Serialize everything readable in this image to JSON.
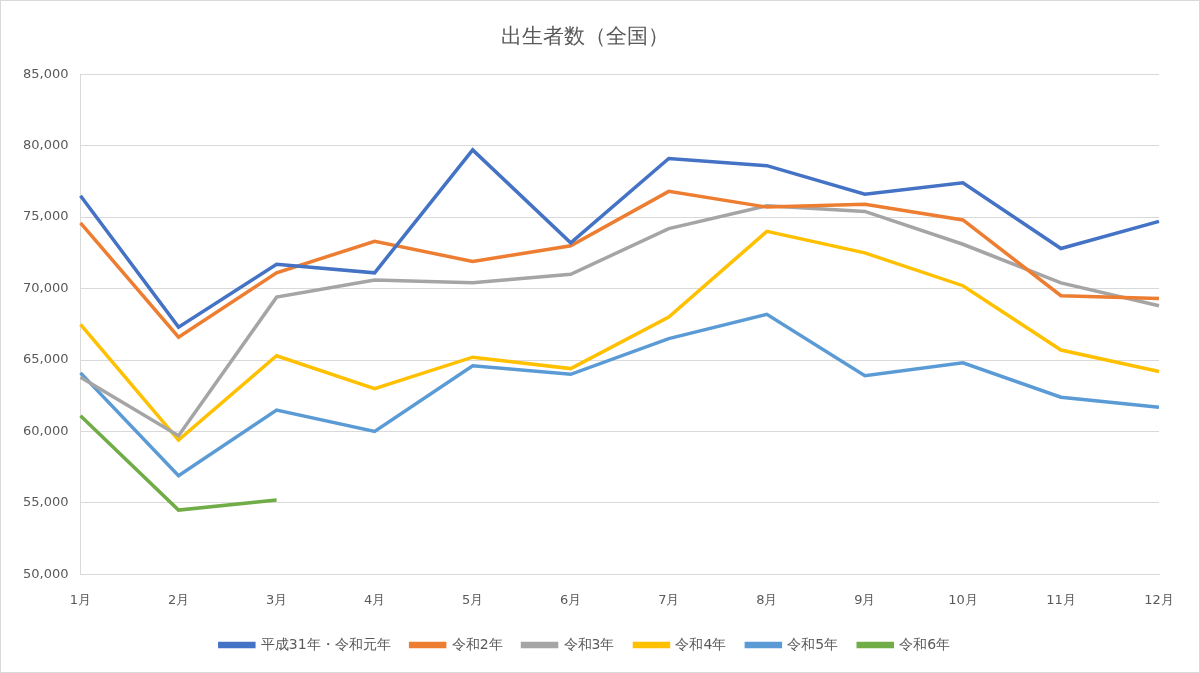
{
  "chart_data": {
    "type": "line",
    "title": "出生者数（全国）",
    "categories": [
      "1月",
      "2月",
      "3月",
      "4月",
      "5月",
      "6月",
      "7月",
      "8月",
      "9月",
      "10月",
      "11月",
      "12月"
    ],
    "series": [
      {
        "name": "平成31年・令和元年",
        "color": "#4472c4",
        "values": [
          76500,
          67300,
          71700,
          71100,
          79700,
          73200,
          79100,
          78600,
          76600,
          77400,
          72800,
          74700
        ]
      },
      {
        "name": "令和2年",
        "color": "#ed7d31",
        "values": [
          74600,
          66600,
          71100,
          73300,
          71900,
          73000,
          76800,
          75700,
          75900,
          74800,
          69500,
          69300
        ]
      },
      {
        "name": "令和3年",
        "color": "#a5a5a5",
        "values": [
          63800,
          59700,
          69400,
          70600,
          70400,
          71000,
          74200,
          75800,
          75400,
          73100,
          70400,
          68800
        ]
      },
      {
        "name": "令和4年",
        "color": "#ffc000",
        "values": [
          67500,
          59400,
          65300,
          63000,
          65200,
          64400,
          68000,
          74000,
          72500,
          70200,
          65700,
          64200
        ]
      },
      {
        "name": "令和5年",
        "color": "#5b9bd5",
        "values": [
          64100,
          56900,
          61500,
          60000,
          64600,
          64000,
          66500,
          68200,
          63900,
          64800,
          62400,
          61700
        ]
      },
      {
        "name": "令和6年",
        "color": "#70ad47",
        "values": [
          61100,
          54500,
          55200,
          null,
          null,
          null,
          null,
          null,
          null,
          null,
          null,
          null
        ]
      }
    ],
    "ylim": [
      50000,
      85000
    ],
    "yticks": [
      {
        "value": 50000,
        "label": "50,000"
      },
      {
        "value": 55000,
        "label": "55,000"
      },
      {
        "value": 60000,
        "label": "60,000"
      },
      {
        "value": 65000,
        "label": "65,000"
      },
      {
        "value": 70000,
        "label": "70,000"
      },
      {
        "value": 75000,
        "label": "75,000"
      },
      {
        "value": 80000,
        "label": "80,000"
      },
      {
        "value": 85000,
        "label": "85,000"
      }
    ],
    "grid": true,
    "legend": "bottom"
  }
}
